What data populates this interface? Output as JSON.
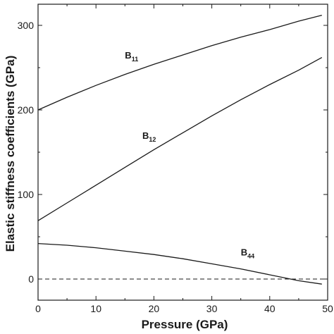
{
  "chart_data": {
    "type": "line",
    "xlabel": "Pressure (GPa)",
    "ylabel": "Elastic stiffness coefficients (GPa)",
    "xlim": [
      0,
      50
    ],
    "ylim": [
      -25,
      325
    ],
    "x_ticks": [
      0,
      10,
      20,
      30,
      40,
      50
    ],
    "y_ticks": [
      0,
      100,
      200,
      300
    ],
    "grid": false,
    "legend": "none",
    "zero_line": {
      "y": 0,
      "style": "dashed"
    },
    "series": [
      {
        "name": "B11",
        "label_main": "B",
        "label_sub": "11",
        "label_at": {
          "x": 15,
          "y": 261
        },
        "x": [
          0,
          5,
          10,
          15,
          20,
          25,
          30,
          35,
          40,
          45,
          49
        ],
        "values": [
          200,
          215,
          229,
          242,
          254,
          265,
          276,
          286,
          295,
          305,
          312
        ]
      },
      {
        "name": "B12",
        "label_main": "B",
        "label_sub": "12",
        "label_at": {
          "x": 18,
          "y": 166
        },
        "x": [
          0,
          5,
          10,
          15,
          20,
          25,
          30,
          35,
          40,
          45,
          49
        ],
        "values": [
          69,
          90,
          111,
          132,
          153,
          173,
          193,
          212,
          230,
          247,
          262
        ]
      },
      {
        "name": "B44",
        "label_main": "B",
        "label_sub": "44",
        "label_at": {
          "x": 35,
          "y": 28
        },
        "x": [
          0,
          5,
          10,
          15,
          20,
          25,
          30,
          35,
          40,
          45,
          49
        ],
        "values": [
          42,
          40,
          37,
          33,
          29,
          24,
          18,
          12,
          5,
          -2,
          -6
        ]
      }
    ]
  }
}
